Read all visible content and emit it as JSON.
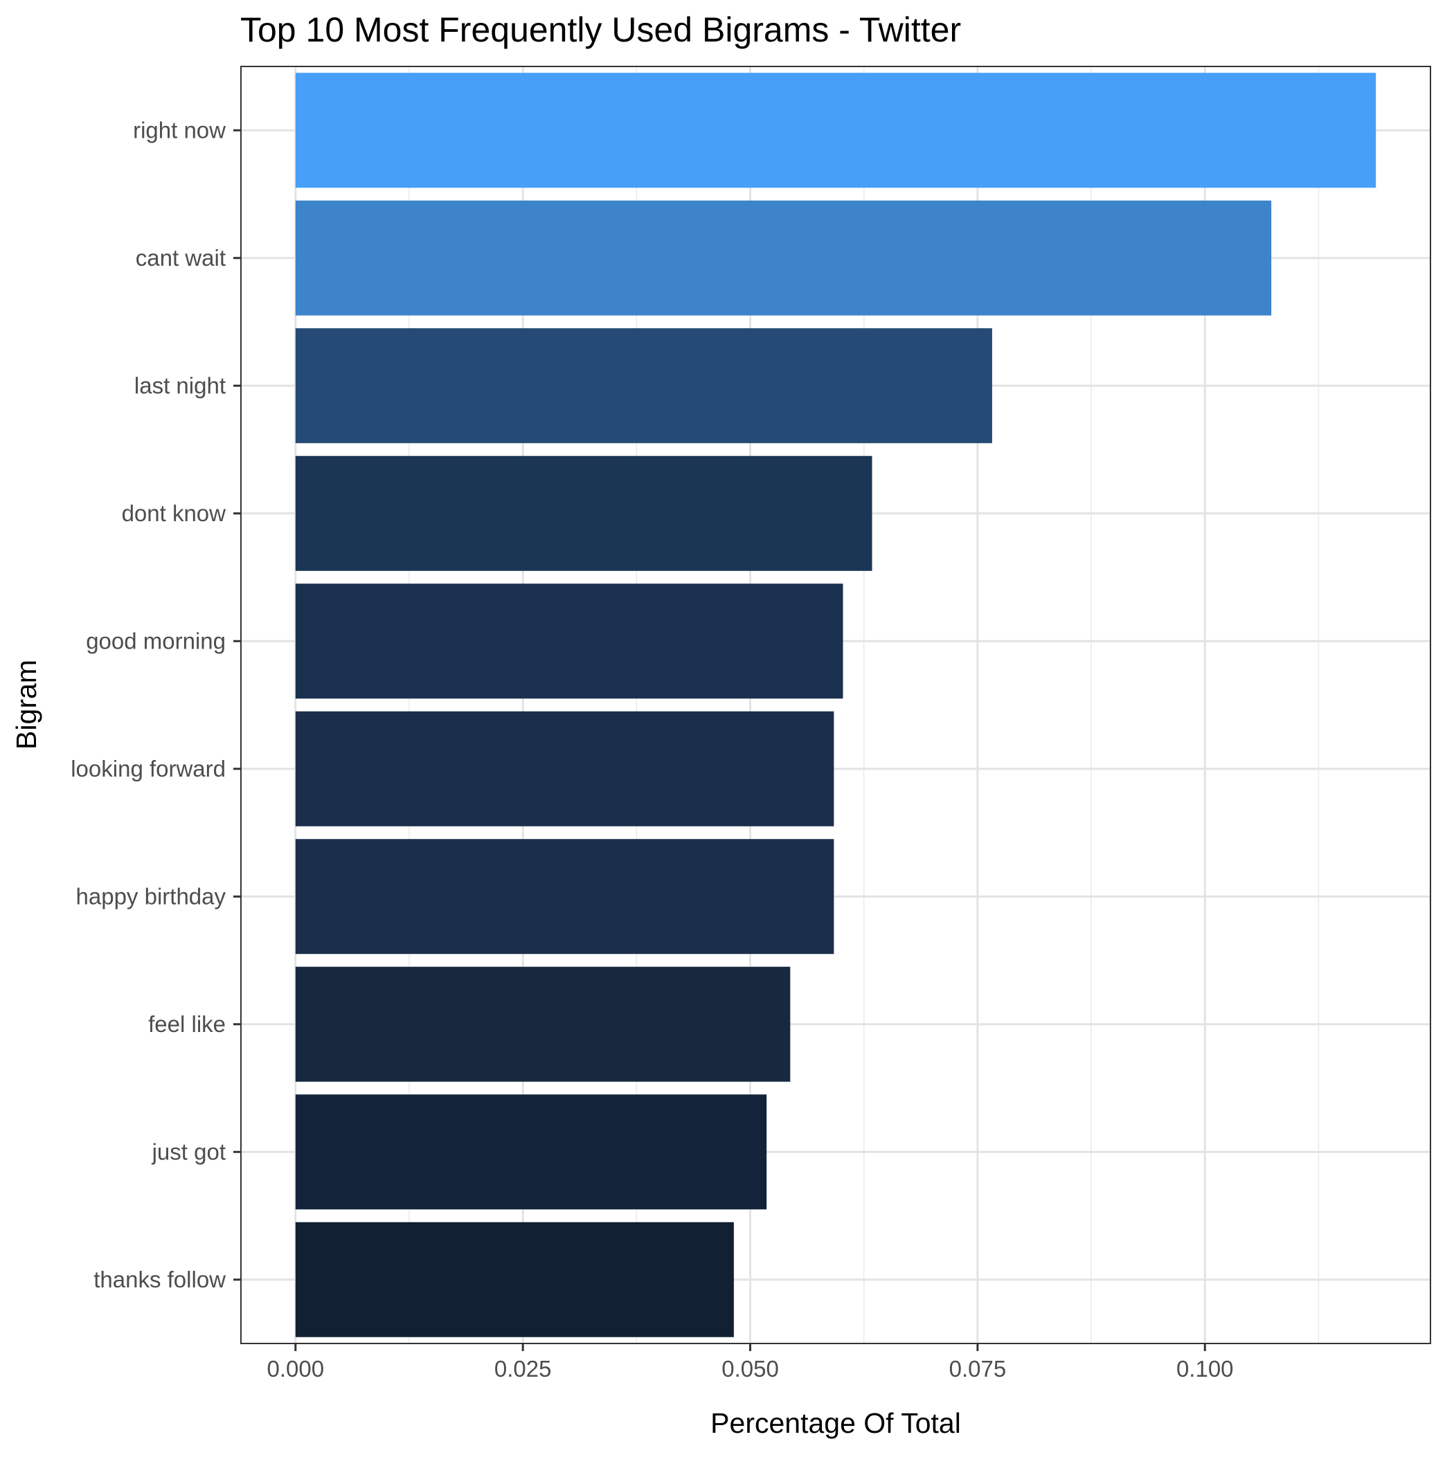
{
  "chart_data": {
    "type": "bar",
    "orientation": "horizontal",
    "title": "Top 10 Most Frequently Used Bigrams - Twitter",
    "xlabel": "Percentage Of Total",
    "ylabel": "Bigram",
    "categories": [
      "right now",
      "cant wait",
      "last night",
      "dont know",
      "good morning",
      "looking forward",
      "happy birthday",
      "feel like",
      "just got",
      "thanks follow"
    ],
    "values": [
      0.1188,
      0.1073,
      0.0766,
      0.0634,
      0.0602,
      0.0592,
      0.0592,
      0.0544,
      0.0518,
      0.0482
    ],
    "bar_colors": [
      "#479ff8",
      "#3d84cb",
      "#244a75",
      "#1b3654",
      "#19314f",
      "#1b2f4c",
      "#1b2f4c",
      "#16293f",
      "#13243a",
      "#112032"
    ],
    "x_ticks": [
      "0.000",
      "0.025",
      "0.050",
      "0.075",
      "0.100"
    ],
    "x_tick_values": [
      0,
      0.025,
      0.05,
      0.075,
      0.1
    ],
    "xlim": [
      -0.006,
      0.1248
    ],
    "grid": true,
    "legend": "none"
  }
}
